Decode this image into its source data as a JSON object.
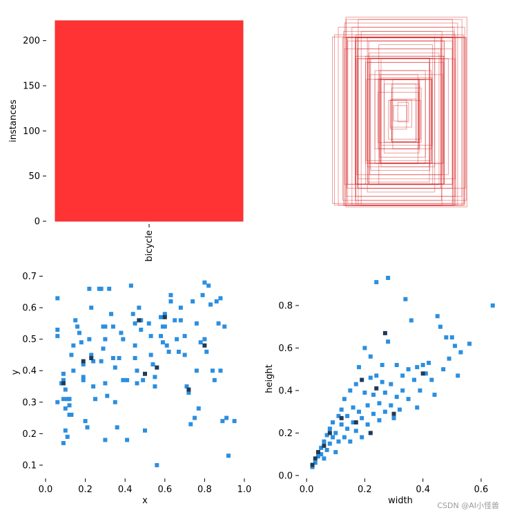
{
  "watermark": "CSDN @AI小怪兽",
  "chart_data": [
    {
      "id": "instances",
      "type": "bar",
      "categories": [
        "bicycle"
      ],
      "values": [
        222
      ],
      "ylabel": "instances",
      "ylim": [
        0,
        222
      ],
      "yticks": [
        0,
        50,
        100,
        150,
        200
      ],
      "color": "#ff3333"
    },
    {
      "id": "boxes",
      "type": "other",
      "color": "#d62728",
      "boxes": [
        [
          0.08,
          0.1
        ],
        [
          0.12,
          0.15
        ],
        [
          0.18,
          0.22
        ],
        [
          0.22,
          0.28
        ],
        [
          0.26,
          0.3
        ],
        [
          0.3,
          0.36
        ],
        [
          0.34,
          0.4
        ],
        [
          0.38,
          0.44
        ],
        [
          0.42,
          0.48
        ],
        [
          0.46,
          0.52
        ],
        [
          0.5,
          0.56
        ],
        [
          0.54,
          0.6
        ],
        [
          0.58,
          0.66
        ],
        [
          0.62,
          0.7
        ],
        [
          0.66,
          0.74
        ],
        [
          0.7,
          0.78
        ],
        [
          0.74,
          0.82
        ],
        [
          0.78,
          0.86
        ],
        [
          0.82,
          0.9
        ],
        [
          0.86,
          0.96
        ],
        [
          0.9,
          0.98
        ],
        [
          0.96,
          0.88
        ],
        [
          0.6,
          0.9
        ],
        [
          0.7,
          0.96
        ],
        [
          0.5,
          0.8
        ],
        [
          0.4,
          0.72
        ],
        [
          0.72,
          0.62
        ],
        [
          0.8,
          0.7
        ],
        [
          0.88,
          0.78
        ],
        [
          0.64,
          0.84
        ],
        [
          0.56,
          0.74
        ],
        [
          0.46,
          0.64
        ],
        [
          0.36,
          0.56
        ],
        [
          0.28,
          0.46
        ],
        [
          0.2,
          0.36
        ],
        [
          0.76,
          0.92
        ],
        [
          0.84,
          0.94
        ],
        [
          0.92,
          0.84
        ],
        [
          0.68,
          0.6
        ],
        [
          0.58,
          0.52
        ],
        [
          0.48,
          0.42
        ],
        [
          0.38,
          0.34
        ],
        [
          0.3,
          0.26
        ],
        [
          0.24,
          0.2
        ],
        [
          0.16,
          0.14
        ],
        [
          0.1,
          0.08
        ],
        [
          0.52,
          0.68
        ],
        [
          0.62,
          0.78
        ],
        [
          0.74,
          0.88
        ],
        [
          0.86,
          0.82
        ],
        [
          0.94,
          0.92
        ],
        [
          0.98,
          0.86
        ],
        [
          0.44,
          0.58
        ],
        [
          0.34,
          0.48
        ],
        [
          0.26,
          0.38
        ],
        [
          0.18,
          0.3
        ],
        [
          0.78,
          0.74
        ],
        [
          0.66,
          0.66
        ],
        [
          0.54,
          0.46
        ],
        [
          0.42,
          0.36
        ]
      ]
    },
    {
      "id": "xy",
      "type": "heatmap",
      "xlabel": "x",
      "ylabel": "y",
      "xlim": [
        0,
        1.0
      ],
      "ylim": [
        0.08,
        0.71
      ],
      "xticks": [
        0.0,
        0.2,
        0.4,
        0.6,
        0.8,
        1.0
      ],
      "yticks": [
        0.1,
        0.2,
        0.3,
        0.4,
        0.5,
        0.6,
        0.7
      ],
      "xtick_labels": [
        "0.0",
        "0.2",
        "0.4",
        "0.6",
        "0.8",
        "1.0"
      ],
      "ytick_labels": [
        "0.1",
        "0.2",
        "0.3",
        "0.4",
        "0.5",
        "0.6",
        "0.7"
      ],
      "points": [
        [
          0.06,
          0.63
        ],
        [
          0.06,
          0.53
        ],
        [
          0.06,
          0.51
        ],
        [
          0.06,
          0.3
        ],
        [
          0.08,
          0.36
        ],
        [
          0.09,
          0.39
        ],
        [
          0.09,
          0.37
        ],
        [
          0.1,
          0.34
        ],
        [
          0.09,
          0.31
        ],
        [
          0.11,
          0.31
        ],
        [
          0.12,
          0.31
        ],
        [
          0.1,
          0.28
        ],
        [
          0.12,
          0.29
        ],
        [
          0.1,
          0.21
        ],
        [
          0.09,
          0.17
        ],
        [
          0.12,
          0.26
        ],
        [
          0.13,
          0.26
        ],
        [
          0.11,
          0.19
        ],
        [
          0.13,
          0.45
        ],
        [
          0.14,
          0.48
        ],
        [
          0.14,
          0.4
        ],
        [
          0.15,
          0.56
        ],
        [
          0.16,
          0.54
        ],
        [
          0.17,
          0.52
        ],
        [
          0.18,
          0.49
        ],
        [
          0.19,
          0.42
        ],
        [
          0.19,
          0.38
        ],
        [
          0.19,
          0.37
        ],
        [
          0.2,
          0.24
        ],
        [
          0.21,
          0.22
        ],
        [
          0.22,
          0.66
        ],
        [
          0.23,
          0.6
        ],
        [
          0.22,
          0.5
        ],
        [
          0.23,
          0.45
        ],
        [
          0.24,
          0.43
        ],
        [
          0.24,
          0.35
        ],
        [
          0.25,
          0.31
        ],
        [
          0.27,
          0.66
        ],
        [
          0.28,
          0.66
        ],
        [
          0.29,
          0.54
        ],
        [
          0.3,
          0.54
        ],
        [
          0.3,
          0.5
        ],
        [
          0.29,
          0.47
        ],
        [
          0.28,
          0.43
        ],
        [
          0.3,
          0.36
        ],
        [
          0.31,
          0.32
        ],
        [
          0.3,
          0.18
        ],
        [
          0.32,
          0.66
        ],
        [
          0.33,
          0.58
        ],
        [
          0.34,
          0.54
        ],
        [
          0.34,
          0.44
        ],
        [
          0.35,
          0.41
        ],
        [
          0.35,
          0.3
        ],
        [
          0.36,
          0.22
        ],
        [
          0.37,
          0.44
        ],
        [
          0.38,
          0.52
        ],
        [
          0.39,
          0.5
        ],
        [
          0.39,
          0.37
        ],
        [
          0.41,
          0.37
        ],
        [
          0.41,
          0.18
        ],
        [
          0.43,
          0.67
        ],
        [
          0.44,
          0.58
        ],
        [
          0.45,
          0.55
        ],
        [
          0.45,
          0.48
        ],
        [
          0.45,
          0.44
        ],
        [
          0.46,
          0.4
        ],
        [
          0.46,
          0.36
        ],
        [
          0.47,
          0.6
        ],
        [
          0.48,
          0.56
        ],
        [
          0.48,
          0.53
        ],
        [
          0.49,
          0.37
        ],
        [
          0.5,
          0.21
        ],
        [
          0.52,
          0.55
        ],
        [
          0.53,
          0.51
        ],
        [
          0.53,
          0.45
        ],
        [
          0.54,
          0.42
        ],
        [
          0.55,
          0.38
        ],
        [
          0.55,
          0.35
        ],
        [
          0.56,
          0.1
        ],
        [
          0.58,
          0.57
        ],
        [
          0.58,
          0.51
        ],
        [
          0.59,
          0.54
        ],
        [
          0.59,
          0.49
        ],
        [
          0.6,
          0.58
        ],
        [
          0.6,
          0.54
        ],
        [
          0.61,
          0.48
        ],
        [
          0.62,
          0.46
        ],
        [
          0.63,
          0.64
        ],
        [
          0.63,
          0.62
        ],
        [
          0.65,
          0.56
        ],
        [
          0.66,
          0.5
        ],
        [
          0.67,
          0.46
        ],
        [
          0.68,
          0.56
        ],
        [
          0.68,
          0.6
        ],
        [
          0.7,
          0.51
        ],
        [
          0.7,
          0.45
        ],
        [
          0.71,
          0.35
        ],
        [
          0.72,
          0.33
        ],
        [
          0.73,
          0.23
        ],
        [
          0.74,
          0.62
        ],
        [
          0.75,
          0.25
        ],
        [
          0.76,
          0.55
        ],
        [
          0.76,
          0.4
        ],
        [
          0.77,
          0.28
        ],
        [
          0.78,
          0.49
        ],
        [
          0.79,
          0.64
        ],
        [
          0.8,
          0.68
        ],
        [
          0.8,
          0.5
        ],
        [
          0.81,
          0.46
        ],
        [
          0.82,
          0.67
        ],
        [
          0.83,
          0.61
        ],
        [
          0.84,
          0.4
        ],
        [
          0.85,
          0.37
        ],
        [
          0.86,
          0.62
        ],
        [
          0.87,
          0.55
        ],
        [
          0.88,
          0.63
        ],
        [
          0.88,
          0.4
        ],
        [
          0.89,
          0.24
        ],
        [
          0.9,
          0.54
        ],
        [
          0.91,
          0.25
        ],
        [
          0.92,
          0.13
        ],
        [
          0.95,
          0.24
        ]
      ],
      "dark_points": [
        [
          0.09,
          0.36
        ],
        [
          0.19,
          0.43
        ],
        [
          0.23,
          0.44
        ],
        [
          0.47,
          0.56
        ],
        [
          0.6,
          0.57
        ],
        [
          0.56,
          0.41
        ],
        [
          0.72,
          0.34
        ],
        [
          0.5,
          0.39
        ],
        [
          0.8,
          0.48
        ]
      ]
    },
    {
      "id": "wh",
      "type": "heatmap",
      "xlabel": "width",
      "ylabel": "height",
      "xlim": [
        -0.005,
        0.65
      ],
      "ylim": [
        -0.02,
        0.93
      ],
      "xticks": [
        0.0,
        0.2,
        0.4,
        0.6
      ],
      "yticks": [
        0.0,
        0.2,
        0.4,
        0.6,
        0.8
      ],
      "xtick_labels": [
        "0.0",
        "0.2",
        "0.4",
        "0.6"
      ],
      "ytick_labels": [
        "0.0",
        "0.2",
        "0.4",
        "0.6",
        "0.8"
      ],
      "points": [
        [
          0.02,
          0.04
        ],
        [
          0.03,
          0.06
        ],
        [
          0.04,
          0.09
        ],
        [
          0.05,
          0.1
        ],
        [
          0.05,
          0.13
        ],
        [
          0.06,
          0.08
        ],
        [
          0.06,
          0.16
        ],
        [
          0.07,
          0.12
        ],
        [
          0.07,
          0.19
        ],
        [
          0.08,
          0.22
        ],
        [
          0.08,
          0.15
        ],
        [
          0.09,
          0.18
        ],
        [
          0.09,
          0.25
        ],
        [
          0.1,
          0.11
        ],
        [
          0.1,
          0.2
        ],
        [
          0.11,
          0.28
        ],
        [
          0.11,
          0.16
        ],
        [
          0.12,
          0.24
        ],
        [
          0.12,
          0.31
        ],
        [
          0.13,
          0.18
        ],
        [
          0.13,
          0.36
        ],
        [
          0.14,
          0.22
        ],
        [
          0.14,
          0.28
        ],
        [
          0.15,
          0.4
        ],
        [
          0.15,
          0.16
        ],
        [
          0.16,
          0.25
        ],
        [
          0.16,
          0.32
        ],
        [
          0.17,
          0.43
        ],
        [
          0.17,
          0.21
        ],
        [
          0.18,
          0.3
        ],
        [
          0.18,
          0.51
        ],
        [
          0.19,
          0.18
        ],
        [
          0.19,
          0.27
        ],
        [
          0.2,
          0.39
        ],
        [
          0.2,
          0.6
        ],
        [
          0.21,
          0.24
        ],
        [
          0.21,
          0.33
        ],
        [
          0.22,
          0.46
        ],
        [
          0.22,
          0.56
        ],
        [
          0.23,
          0.29
        ],
        [
          0.23,
          0.38
        ],
        [
          0.24,
          0.91
        ],
        [
          0.24,
          0.47
        ],
        [
          0.25,
          0.26
        ],
        [
          0.25,
          0.34
        ],
        [
          0.26,
          0.52
        ],
        [
          0.26,
          0.44
        ],
        [
          0.27,
          0.3
        ],
        [
          0.27,
          0.39
        ],
        [
          0.28,
          0.93
        ],
        [
          0.28,
          0.63
        ],
        [
          0.29,
          0.33
        ],
        [
          0.29,
          0.43
        ],
        [
          0.3,
          0.27
        ],
        [
          0.31,
          0.37
        ],
        [
          0.31,
          0.52
        ],
        [
          0.32,
          0.31
        ],
        [
          0.33,
          0.47
        ],
        [
          0.33,
          0.4
        ],
        [
          0.34,
          0.83
        ],
        [
          0.35,
          0.5
        ],
        [
          0.35,
          0.36
        ],
        [
          0.36,
          0.73
        ],
        [
          0.37,
          0.45
        ],
        [
          0.38,
          0.51
        ],
        [
          0.38,
          0.32
        ],
        [
          0.39,
          0.4
        ],
        [
          0.4,
          0.52
        ],
        [
          0.41,
          0.48
        ],
        [
          0.42,
          0.53
        ],
        [
          0.43,
          0.45
        ],
        [
          0.44,
          0.38
        ],
        [
          0.45,
          0.75
        ],
        [
          0.46,
          0.7
        ],
        [
          0.47,
          0.5
        ],
        [
          0.48,
          0.65
        ],
        [
          0.49,
          0.55
        ],
        [
          0.5,
          0.65
        ],
        [
          0.51,
          0.61
        ],
        [
          0.52,
          0.47
        ],
        [
          0.53,
          0.58
        ],
        [
          0.56,
          0.62
        ],
        [
          0.64,
          0.8
        ]
      ],
      "dark_points": [
        [
          0.02,
          0.05
        ],
        [
          0.03,
          0.08
        ],
        [
          0.04,
          0.11
        ],
        [
          0.06,
          0.14
        ],
        [
          0.08,
          0.2
        ],
        [
          0.12,
          0.27
        ],
        [
          0.17,
          0.25
        ],
        [
          0.22,
          0.2
        ],
        [
          0.27,
          0.67
        ],
        [
          0.3,
          0.29
        ],
        [
          0.24,
          0.41
        ],
        [
          0.19,
          0.45
        ],
        [
          0.4,
          0.48
        ]
      ]
    }
  ]
}
